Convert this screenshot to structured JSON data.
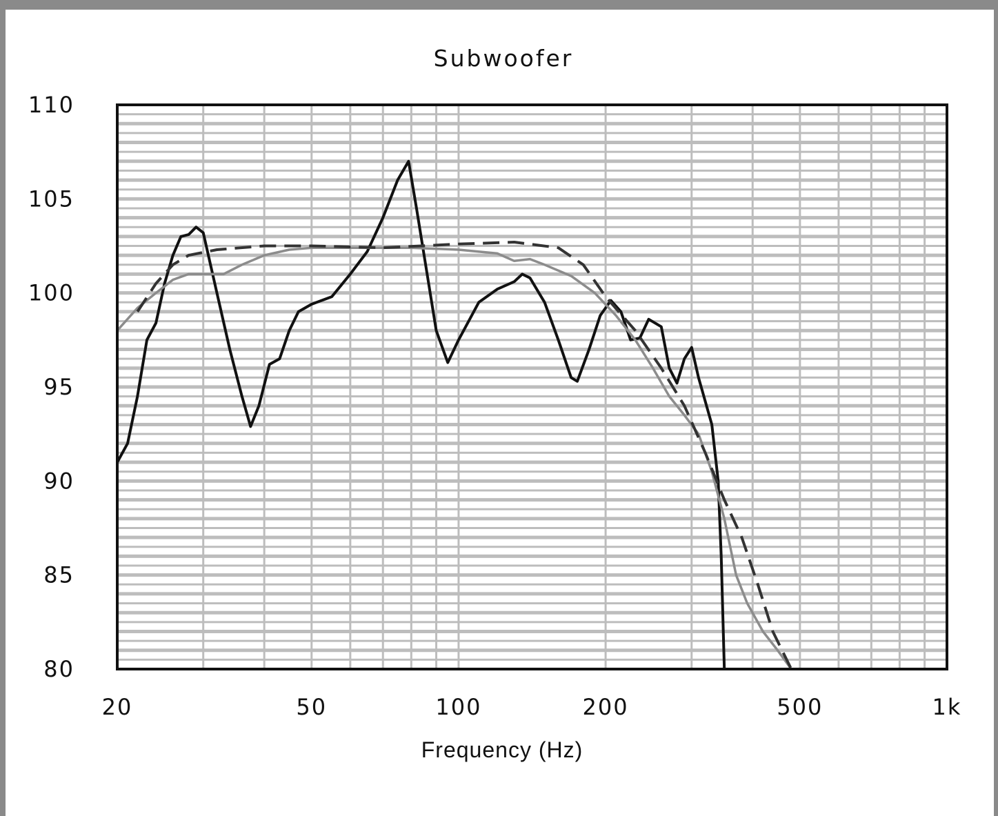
{
  "chart_data": {
    "type": "line",
    "title": "Subwoofer",
    "xlabel": "Frequency  (Hz)",
    "ylabel": "",
    "xscale": "log",
    "xlim": [
      20,
      1000
    ],
    "ylim": [
      80,
      110
    ],
    "xticks": [
      {
        "value": 20,
        "label": "20"
      },
      {
        "value": 50,
        "label": "50"
      },
      {
        "value": 100,
        "label": "100"
      },
      {
        "value": 200,
        "label": "200"
      },
      {
        "value": 500,
        "label": "500"
      },
      {
        "value": 1000,
        "label": "1k"
      }
    ],
    "yticks": [
      {
        "value": 110,
        "label": "110"
      },
      {
        "value": 105,
        "label": "105"
      },
      {
        "value": 100,
        "label": "100"
      },
      {
        "value": 95,
        "label": "95"
      },
      {
        "value": 90,
        "label": "90"
      },
      {
        "value": 85,
        "label": "85"
      },
      {
        "value": 80,
        "label": "80"
      }
    ],
    "grid": true,
    "legend": "none",
    "series": [
      {
        "style": "solid",
        "color": "#111111",
        "points": [
          [
            20,
            91.0
          ],
          [
            21,
            92.0
          ],
          [
            22,
            94.5
          ],
          [
            23,
            97.5
          ],
          [
            24,
            98.4
          ],
          [
            25,
            100.5
          ],
          [
            26,
            102.0
          ],
          [
            27,
            103.0
          ],
          [
            28,
            103.1
          ],
          [
            29,
            103.5
          ],
          [
            30,
            103.2
          ],
          [
            32,
            100.0
          ],
          [
            34,
            97.0
          ],
          [
            36,
            94.5
          ],
          [
            37.5,
            92.9
          ],
          [
            39,
            94.0
          ],
          [
            41,
            96.2
          ],
          [
            43,
            96.5
          ],
          [
            45,
            98.0
          ],
          [
            47,
            99.0
          ],
          [
            50,
            99.4
          ],
          [
            55,
            99.8
          ],
          [
            60,
            101.0
          ],
          [
            65,
            102.2
          ],
          [
            70,
            104.0
          ],
          [
            75,
            106.0
          ],
          [
            79,
            107.0
          ],
          [
            82,
            104.5
          ],
          [
            85,
            102.0
          ],
          [
            90,
            98.0
          ],
          [
            95,
            96.3
          ],
          [
            100,
            97.5
          ],
          [
            110,
            99.5
          ],
          [
            120,
            100.2
          ],
          [
            130,
            100.6
          ],
          [
            135,
            101.0
          ],
          [
            140,
            100.8
          ],
          [
            150,
            99.5
          ],
          [
            160,
            97.5
          ],
          [
            170,
            95.5
          ],
          [
            175,
            95.3
          ],
          [
            185,
            97.0
          ],
          [
            195,
            98.8
          ],
          [
            205,
            99.6
          ],
          [
            215,
            99.0
          ],
          [
            225,
            97.5
          ],
          [
            235,
            97.6
          ],
          [
            245,
            98.6
          ],
          [
            260,
            98.2
          ],
          [
            270,
            96.0
          ],
          [
            280,
            95.2
          ],
          [
            290,
            96.5
          ],
          [
            300,
            97.1
          ],
          [
            310,
            95.5
          ],
          [
            330,
            93.0
          ],
          [
            340,
            90.0
          ],
          [
            345,
            86.0
          ],
          [
            350,
            80.0
          ]
        ]
      },
      {
        "style": "solid",
        "color": "#8c8c8c",
        "points": [
          [
            20,
            98.0
          ],
          [
            22,
            99.2
          ],
          [
            24,
            100.0
          ],
          [
            26,
            100.7
          ],
          [
            28,
            101.0
          ],
          [
            30,
            101.0
          ],
          [
            33,
            101.0
          ],
          [
            36,
            101.5
          ],
          [
            40,
            102.0
          ],
          [
            45,
            102.3
          ],
          [
            50,
            102.4
          ],
          [
            60,
            102.4
          ],
          [
            70,
            102.4
          ],
          [
            80,
            102.4
          ],
          [
            100,
            102.3
          ],
          [
            120,
            102.1
          ],
          [
            130,
            101.7
          ],
          [
            140,
            101.8
          ],
          [
            150,
            101.5
          ],
          [
            170,
            100.9
          ],
          [
            190,
            100.0
          ],
          [
            210,
            98.8
          ],
          [
            230,
            97.5
          ],
          [
            250,
            96.0
          ],
          [
            270,
            94.5
          ],
          [
            290,
            93.5
          ],
          [
            310,
            92.5
          ],
          [
            330,
            90.5
          ],
          [
            350,
            88.0
          ],
          [
            370,
            85.0
          ],
          [
            390,
            83.5
          ],
          [
            420,
            82.0
          ],
          [
            450,
            81.0
          ],
          [
            480,
            80.0
          ]
        ]
      },
      {
        "style": "dashed",
        "color": "#333333",
        "points": [
          [
            22,
            99.0
          ],
          [
            24,
            100.5
          ],
          [
            26,
            101.5
          ],
          [
            28,
            102.0
          ],
          [
            32,
            102.3
          ],
          [
            40,
            102.5
          ],
          [
            50,
            102.5
          ],
          [
            70,
            102.4
          ],
          [
            100,
            102.6
          ],
          [
            130,
            102.7
          ],
          [
            160,
            102.4
          ],
          [
            180,
            101.5
          ],
          [
            200,
            99.8
          ],
          [
            230,
            98.0
          ],
          [
            260,
            96.0
          ],
          [
            290,
            94.0
          ],
          [
            320,
            91.5
          ],
          [
            350,
            89.0
          ],
          [
            380,
            87.0
          ],
          [
            410,
            84.5
          ],
          [
            440,
            82.0
          ],
          [
            480,
            80.0
          ]
        ]
      }
    ]
  }
}
